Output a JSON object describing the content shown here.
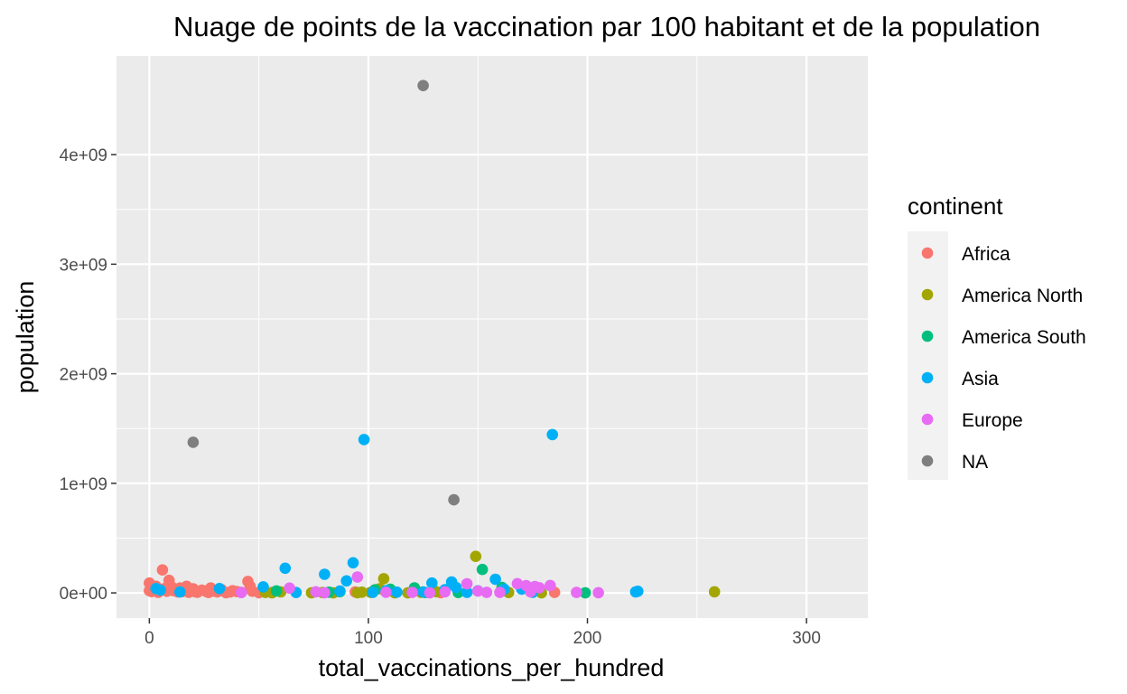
{
  "chart_data": {
    "type": "scatter",
    "title": "Nuage de points de la vaccination par 100 habitant et de la population",
    "xlabel": "total_vaccinations_per_hundred",
    "ylabel": "population",
    "xlim": [
      -15,
      328
    ],
    "ylim": [
      -230000000.0,
      4900000000.0
    ],
    "x_ticks": [
      0,
      100,
      200,
      300
    ],
    "x_tick_labels": [
      "0",
      "100",
      "200",
      "300"
    ],
    "y_ticks": [
      0,
      1000000000.0,
      2000000000.0,
      3000000000.0,
      4000000000.0
    ],
    "y_tick_labels": [
      "0e+00",
      "1e+09",
      "2e+09",
      "3e+09",
      "4e+09"
    ],
    "grid": true,
    "legend_position": "right",
    "legend_title": "continent",
    "series": [
      {
        "name": "Africa",
        "color": "#F8766D",
        "points": [
          [
            0,
            90000000
          ],
          [
            0,
            20000000
          ],
          [
            1,
            12000000
          ],
          [
            2,
            30000000
          ],
          [
            3,
            60000000
          ],
          [
            4,
            5000000
          ],
          [
            5,
            25000000
          ],
          [
            6,
            210000000
          ],
          [
            7,
            40000000
          ],
          [
            8,
            15000000
          ],
          [
            9,
            115000000
          ],
          [
            10,
            58000000
          ],
          [
            11,
            20000000
          ],
          [
            12,
            33000000
          ],
          [
            13,
            8000000
          ],
          [
            14,
            45000000
          ],
          [
            15,
            12000000
          ],
          [
            16,
            28000000
          ],
          [
            17,
            60000000
          ],
          [
            18,
            5000000
          ],
          [
            19,
            18000000
          ],
          [
            20,
            37000000
          ],
          [
            21,
            10000000
          ],
          [
            22,
            6000000
          ],
          [
            24,
            26000000
          ],
          [
            26,
            12000000
          ],
          [
            27,
            3000000
          ],
          [
            28,
            45000000
          ],
          [
            29,
            16000000
          ],
          [
            31,
            9000000
          ],
          [
            33,
            30000000
          ],
          [
            35,
            2000000
          ],
          [
            37,
            8000000
          ],
          [
            38,
            20000000
          ],
          [
            40,
            12000000
          ],
          [
            42,
            5000000
          ],
          [
            45,
            105000000
          ],
          [
            46,
            60000000
          ],
          [
            47,
            15000000
          ],
          [
            50,
            2000000
          ],
          [
            56,
            4000000
          ],
          [
            94,
            8000000
          ],
          [
            133,
            2000000
          ],
          [
            185,
            4000000
          ]
        ]
      },
      {
        "name": "America North",
        "color": "#A3A500",
        "points": [
          [
            53,
            4000000
          ],
          [
            56,
            1000000
          ],
          [
            60,
            9000000
          ],
          [
            74,
            1000000
          ],
          [
            79,
            3000000
          ],
          [
            84,
            500000
          ],
          [
            95,
            2000000
          ],
          [
            97,
            7000000
          ],
          [
            101,
            5000000
          ],
          [
            105,
            38000000
          ],
          [
            107,
            130000000
          ],
          [
            112,
            1000000
          ],
          [
            118,
            500000
          ],
          [
            124,
            5000000
          ],
          [
            131,
            11000000
          ],
          [
            149,
            333000000
          ],
          [
            164,
            3000000
          ],
          [
            179,
            1000000
          ],
          [
            258,
            10000000
          ]
        ]
      },
      {
        "name": "America South",
        "color": "#00BF7D",
        "points": [
          [
            58,
            18000000
          ],
          [
            82,
            7000000
          ],
          [
            87,
            11000000
          ],
          [
            103,
            28000000
          ],
          [
            110,
            33000000
          ],
          [
            121,
            46000000
          ],
          [
            126,
            3000000
          ],
          [
            141,
            3000000
          ],
          [
            152,
            214000000
          ],
          [
            161,
            50000000
          ],
          [
            199,
            1000000
          ]
        ]
      },
      {
        "name": "Asia",
        "color": "#00B0F6",
        "points": [
          [
            3,
            40000000
          ],
          [
            5,
            26000000
          ],
          [
            14,
            8000000
          ],
          [
            32,
            40000000
          ],
          [
            52,
            55000000
          ],
          [
            62,
            225000000
          ],
          [
            67,
            3000000
          ],
          [
            80,
            170000000
          ],
          [
            87,
            17000000
          ],
          [
            90,
            110000000
          ],
          [
            93,
            275000000
          ],
          [
            98,
            1400000000
          ],
          [
            102,
            5000000
          ],
          [
            108,
            20000000
          ],
          [
            113,
            7000000
          ],
          [
            125,
            9000000
          ],
          [
            129,
            90000000
          ],
          [
            135,
            30000000
          ],
          [
            138,
            100000000
          ],
          [
            140,
            50000000
          ],
          [
            145,
            5000000
          ],
          [
            150,
            19000000
          ],
          [
            158,
            125000000
          ],
          [
            162,
            33000000
          ],
          [
            170,
            35000000
          ],
          [
            175,
            5000000
          ],
          [
            184,
            1445000000
          ],
          [
            222,
            9000000
          ],
          [
            223,
            15000000
          ]
        ]
      },
      {
        "name": "Europe",
        "color": "#E76BF3",
        "points": [
          [
            42,
            3000000
          ],
          [
            64,
            44000000
          ],
          [
            76,
            10000000
          ],
          [
            80,
            2000000
          ],
          [
            95,
            145000000
          ],
          [
            108,
            6000000
          ],
          [
            120,
            5000000
          ],
          [
            128,
            1000000
          ],
          [
            135,
            10000000
          ],
          [
            145,
            83000000
          ],
          [
            150,
            17000000
          ],
          [
            154,
            5000000
          ],
          [
            160,
            4000000
          ],
          [
            168,
            84000000
          ],
          [
            172,
            67000000
          ],
          [
            174,
            10000000
          ],
          [
            176,
            59000000
          ],
          [
            178,
            47000000
          ],
          [
            183,
            68000000
          ],
          [
            195,
            4000000
          ],
          [
            205,
            2000000
          ]
        ]
      },
      {
        "name": "NA",
        "color": "#7F7F7F",
        "points": [
          [
            20,
            1375000000
          ],
          [
            125,
            4630000000
          ],
          [
            139,
            850000000
          ]
        ]
      }
    ]
  }
}
